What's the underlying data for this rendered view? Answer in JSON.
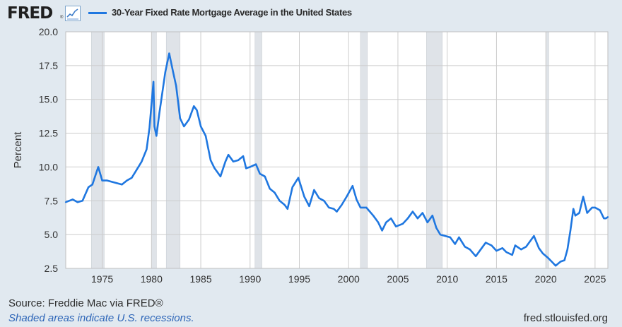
{
  "header": {
    "logo_text": "FRED",
    "logo_mark": "®",
    "logo_icon": "line-chart-icon",
    "series_label": "30-Year Fixed Rate Mortgage Average in the United States"
  },
  "colors": {
    "line": "#1f77e0",
    "plot_bg": "#ffffff",
    "page_bg": "#e1e9f0",
    "recession": "#dfe3e8",
    "grid": "#cccccc",
    "note": "#2e66b8"
  },
  "footer": {
    "source": "Source: Freddie Mac via FRED®",
    "note": "Shaded areas indicate U.S. recessions.",
    "url": "fred.stlouisfed.org"
  },
  "chart_data": {
    "type": "line",
    "title": "30-Year Fixed Rate Mortgage Average in the United States",
    "xlabel": "",
    "ylabel": "Percent",
    "xlim": [
      1971.3,
      2026.3
    ],
    "ylim": [
      2.5,
      20.0
    ],
    "grid": true,
    "x_ticks": [
      1975,
      1980,
      1985,
      1990,
      1995,
      2000,
      2005,
      2010,
      2015,
      2020,
      2025
    ],
    "x_tick_labels": [
      "1975",
      "1980",
      "1985",
      "1990",
      "1995",
      "2000",
      "2005",
      "2010",
      "2015",
      "2020",
      "2025"
    ],
    "y_ticks": [
      2.5,
      5.0,
      7.5,
      10.0,
      12.5,
      15.0,
      17.5,
      20.0
    ],
    "y_tick_labels": [
      "2.5",
      "5.0",
      "7.5",
      "10.0",
      "12.5",
      "15.0",
      "17.5",
      "20.0"
    ],
    "recessions": [
      [
        1973.9,
        1975.2
      ],
      [
        1980.0,
        1980.5
      ],
      [
        1981.5,
        1982.9
      ],
      [
        1990.5,
        1991.2
      ],
      [
        2001.2,
        2001.9
      ],
      [
        2007.9,
        2009.5
      ],
      [
        2020.1,
        2020.3
      ]
    ],
    "series": [
      {
        "name": "30-Year Fixed Rate Mortgage Average in the United States",
        "x": [
          1971.3,
          1972.0,
          1972.5,
          1973.0,
          1973.6,
          1974.0,
          1974.6,
          1975.0,
          1975.5,
          1976.0,
          1976.5,
          1977.0,
          1977.5,
          1978.0,
          1978.5,
          1979.0,
          1979.5,
          1979.8,
          1980.2,
          1980.3,
          1980.5,
          1980.8,
          1981.0,
          1981.4,
          1981.8,
          1982.2,
          1982.5,
          1982.9,
          1983.3,
          1983.8,
          1984.3,
          1984.6,
          1985.0,
          1985.5,
          1986.0,
          1986.4,
          1987.0,
          1987.5,
          1987.8,
          1988.3,
          1988.8,
          1989.3,
          1989.6,
          1990.0,
          1990.6,
          1991.0,
          1991.5,
          1992.0,
          1992.5,
          1993.0,
          1993.5,
          1993.8,
          1994.3,
          1994.9,
          1995.5,
          1996.0,
          1996.5,
          1997.0,
          1997.5,
          1998.0,
          1998.5,
          1998.8,
          1999.3,
          1999.8,
          2000.4,
          2000.8,
          2001.2,
          2001.8,
          2002.5,
          2003.0,
          2003.4,
          2003.8,
          2004.3,
          2004.8,
          2005.5,
          2006.0,
          2006.5,
          2007.0,
          2007.5,
          2008.0,
          2008.5,
          2008.9,
          2009.3,
          2009.8,
          2010.3,
          2010.8,
          2011.2,
          2011.8,
          2012.3,
          2012.9,
          2013.5,
          2013.9,
          2014.5,
          2015.0,
          2015.6,
          2016.0,
          2016.6,
          2016.9,
          2017.5,
          2018.0,
          2018.8,
          2019.3,
          2019.7,
          2020.2,
          2020.6,
          2021.0,
          2021.5,
          2021.9,
          2022.2,
          2022.5,
          2022.8,
          2023.0,
          2023.4,
          2023.8,
          2024.2,
          2024.7,
          2025.0,
          2025.5,
          2025.9,
          2026.1,
          2026.3
        ],
        "y": [
          7.4,
          7.6,
          7.4,
          7.5,
          8.5,
          8.7,
          10.0,
          9.0,
          9.0,
          8.9,
          8.8,
          8.7,
          9.0,
          9.2,
          9.8,
          10.4,
          11.3,
          12.9,
          16.3,
          13.0,
          12.3,
          14.0,
          15.0,
          17.0,
          18.4,
          17.0,
          16.0,
          13.6,
          13.0,
          13.5,
          14.5,
          14.2,
          13.0,
          12.3,
          10.5,
          9.9,
          9.3,
          10.4,
          10.9,
          10.4,
          10.5,
          10.8,
          9.9,
          10.0,
          10.2,
          9.5,
          9.3,
          8.4,
          8.1,
          7.5,
          7.2,
          6.9,
          8.5,
          9.2,
          7.8,
          7.1,
          8.3,
          7.7,
          7.5,
          7.0,
          6.9,
          6.7,
          7.2,
          7.8,
          8.6,
          7.6,
          7.0,
          7.0,
          6.4,
          5.9,
          5.3,
          5.9,
          6.2,
          5.6,
          5.8,
          6.2,
          6.7,
          6.2,
          6.6,
          5.9,
          6.4,
          5.5,
          5.0,
          4.9,
          4.8,
          4.3,
          4.8,
          4.1,
          3.9,
          3.4,
          4.0,
          4.4,
          4.2,
          3.8,
          4.0,
          3.7,
          3.5,
          4.2,
          3.9,
          4.1,
          4.9,
          4.0,
          3.6,
          3.3,
          3.0,
          2.7,
          3.0,
          3.1,
          3.9,
          5.3,
          6.9,
          6.4,
          6.6,
          7.8,
          6.6,
          7.0,
          7.0,
          6.8,
          6.2,
          6.2,
          6.3
        ]
      }
    ]
  }
}
